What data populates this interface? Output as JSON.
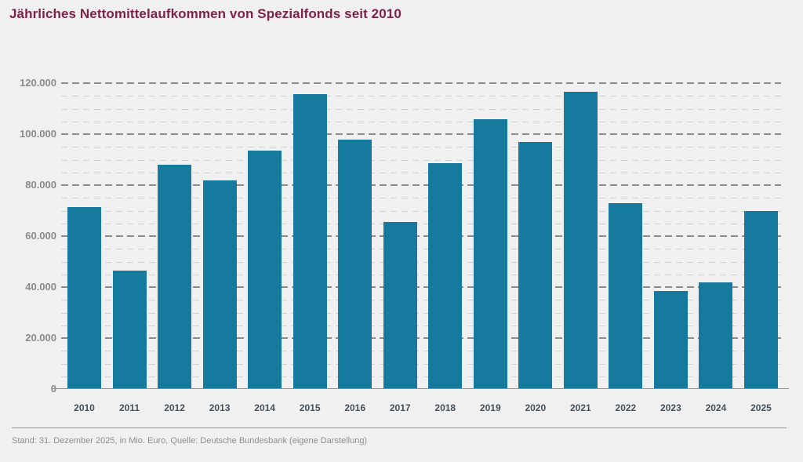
{
  "title": "Jährliches Nettomittelaufkommen von Spezialfonds seit 2010",
  "footer": {
    "text": "Stand: 31. Dezember 2025, in Mio. Euro, Quelle: Deutsche Bundesbank (eigene Darstellung)"
  },
  "colors": {
    "background": "#f0f0f0",
    "bar": "#16799e",
    "title_text": "#7d2248",
    "y_axis_label": "#8a8a8a",
    "year_label": "#44505a",
    "major_gridline": "#8c8c8c",
    "minor_gridline": "#d2d2d2",
    "baseline": "#8f8f8f",
    "separator_line": "#909090",
    "footer_text": "#8f8f8f"
  },
  "y_axis": {
    "ticks": [
      {
        "value": 0,
        "label": "0"
      },
      {
        "value": 20000,
        "label": "20.000"
      },
      {
        "value": 40000,
        "label": "40.000"
      },
      {
        "value": 60000,
        "label": "60.000"
      },
      {
        "value": 80000,
        "label": "80.000"
      },
      {
        "value": 100000,
        "label": "100.000"
      },
      {
        "value": 120000,
        "label": "120.000"
      }
    ]
  },
  "chart_data": {
    "type": "bar",
    "title": "Jährliches Nettomittelaufkommen von Spezialfonds seit 2010",
    "categories": [
      "2010",
      "2011",
      "2012",
      "2013",
      "2014",
      "2015",
      "2016",
      "2017",
      "2018",
      "2019",
      "2020",
      "2021",
      "2022",
      "2023",
      "2024",
      "2025"
    ],
    "values": [
      71500,
      46500,
      88000,
      82000,
      93500,
      115600,
      98000,
      65600,
      88700,
      105700,
      97000,
      116700,
      73000,
      38400,
      42000,
      70000
    ],
    "unit": "Mio. Euro",
    "xlabel": "",
    "ylabel": "",
    "ylim": [
      0,
      120000
    ],
    "grid_minor_step": 5000,
    "grid_major_step": 20000,
    "grid": "horizontal-dashed-behind-bars",
    "legend": "none"
  }
}
